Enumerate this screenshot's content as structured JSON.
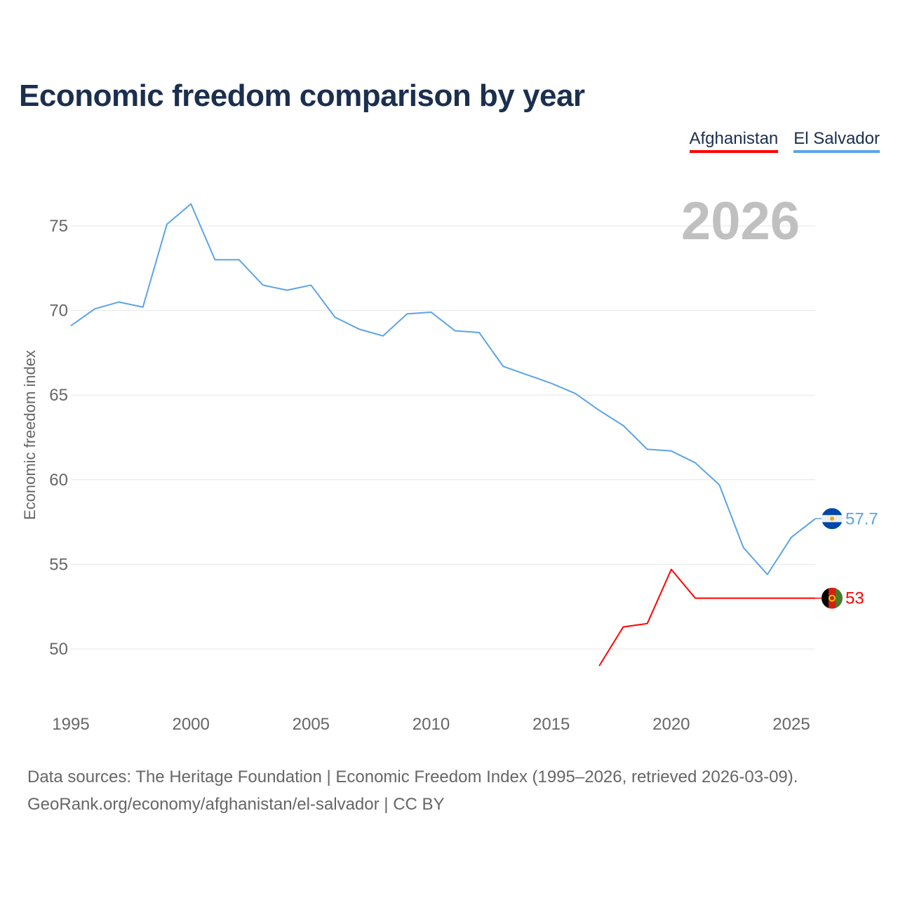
{
  "title": "Economic freedom comparison by year",
  "legend": [
    {
      "label": "Afghanistan",
      "color": "#ff0000"
    },
    {
      "label": "El Salvador",
      "color": "#5ba4e8"
    }
  ],
  "year_display": "2026",
  "source_line1": "Data sources: The Heritage Foundation | Economic Freedom Index (1995–2026, retrieved 2026-03-09).",
  "source_line2": "GeoRank.org/economy/afghanistan/el-salvador | CC BY",
  "chart_data": {
    "type": "line",
    "title": "Economic freedom comparison by year",
    "xlabel": "",
    "ylabel": "Economic freedom index",
    "xlim": [
      1995,
      2026
    ],
    "ylim": [
      47,
      77.5
    ],
    "xticks": [
      1995,
      2000,
      2005,
      2010,
      2015,
      2020,
      2025
    ],
    "yticks": [
      50,
      55,
      60,
      65,
      70,
      75
    ],
    "grid": true,
    "legend_position": "top-right",
    "series": [
      {
        "name": "Afghanistan",
        "color": "#ff0000",
        "end_label": "53",
        "x": [
          2017,
          2018,
          2019,
          2020,
          2021,
          2022,
          2023,
          2024,
          2025,
          2026
        ],
        "values": [
          49.0,
          51.3,
          51.5,
          54.7,
          53.0,
          53.0,
          53.0,
          53.0,
          53.0,
          53.0
        ]
      },
      {
        "name": "El Salvador",
        "color": "#5ba4e8",
        "end_label": "57.7",
        "x": [
          1995,
          1996,
          1997,
          1998,
          1999,
          2000,
          2001,
          2002,
          2003,
          2004,
          2005,
          2006,
          2007,
          2008,
          2009,
          2010,
          2011,
          2012,
          2013,
          2014,
          2015,
          2016,
          2017,
          2018,
          2019,
          2020,
          2021,
          2022,
          2023,
          2024,
          2025,
          2026
        ],
        "values": [
          69.1,
          70.1,
          70.5,
          70.2,
          75.1,
          76.3,
          73.0,
          73.0,
          71.5,
          71.2,
          71.5,
          69.6,
          68.9,
          68.5,
          69.8,
          69.9,
          68.8,
          68.7,
          66.7,
          66.2,
          65.7,
          65.1,
          64.1,
          63.2,
          61.8,
          61.7,
          61.0,
          59.7,
          56.0,
          54.4,
          56.6,
          57.7
        ]
      }
    ]
  }
}
